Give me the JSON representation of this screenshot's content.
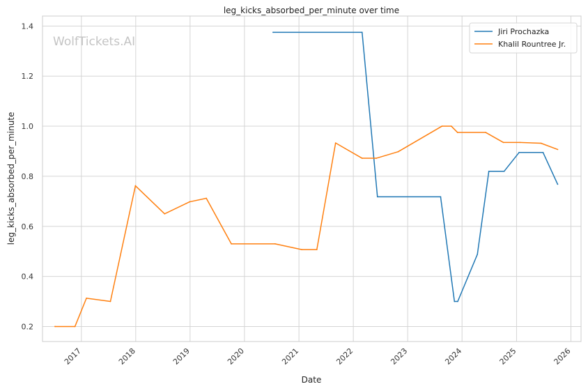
{
  "chart_data": {
    "type": "line",
    "title": "leg_kicks_absorbed_per_minute over time",
    "xlabel": "Date",
    "ylabel": "leg_kicks_absorbed_per_minute",
    "watermark": "WolfTickets.AI",
    "xlim": [
      "2016-04-15",
      "2026-03-10"
    ],
    "ylim": [
      0.14,
      1.44
    ],
    "x_ticks": [
      "2017",
      "2018",
      "2019",
      "2020",
      "2021",
      "2022",
      "2023",
      "2024",
      "2025",
      "2026"
    ],
    "y_ticks": [
      0.2,
      0.4,
      0.6,
      0.8,
      1.0,
      1.2,
      1.4
    ],
    "y_tick_labels": [
      "0.2",
      "0.4",
      "0.6",
      "0.8",
      "1.0",
      "1.2",
      "1.4"
    ],
    "grid": true,
    "legend_position": "top-right",
    "series": [
      {
        "name": "Jiri Prochazka",
        "color": "#1f77b4",
        "points": [
          [
            "2020-07-11",
            1.375
          ],
          [
            "2022-03-01",
            1.375
          ],
          [
            "2022-06-12",
            0.718
          ],
          [
            "2023-08-10",
            0.718
          ],
          [
            "2023-11-11",
            0.3
          ],
          [
            "2023-12-03",
            0.3
          ],
          [
            "2024-04-13",
            0.488
          ],
          [
            "2024-06-29",
            0.82
          ],
          [
            "2024-10-10",
            0.82
          ],
          [
            "2025-01-18",
            0.895
          ],
          [
            "2025-06-28",
            0.895
          ],
          [
            "2025-10-04",
            0.768
          ]
        ]
      },
      {
        "name": "Khalil Rountree Jr.",
        "color": "#ff7f0e",
        "points": [
          [
            "2016-07-08",
            0.2
          ],
          [
            "2016-11-19",
            0.2
          ],
          [
            "2017-02-04",
            0.313
          ],
          [
            "2017-07-15",
            0.3
          ],
          [
            "2017-12-30",
            0.762
          ],
          [
            "2018-07-14",
            0.65
          ],
          [
            "2018-12-29",
            0.698
          ],
          [
            "2019-04-20",
            0.712
          ],
          [
            "2019-10-05",
            0.53
          ],
          [
            "2020-07-25",
            0.53
          ],
          [
            "2021-01-20",
            0.507
          ],
          [
            "2021-05-01",
            0.507
          ],
          [
            "2021-09-04",
            0.933
          ],
          [
            "2022-03-01",
            0.872
          ],
          [
            "2022-06-04",
            0.872
          ],
          [
            "2022-10-29",
            0.898
          ],
          [
            "2023-08-19",
            1.0
          ],
          [
            "2023-10-21",
            1.0
          ],
          [
            "2023-12-02",
            0.975
          ],
          [
            "2024-06-08",
            0.975
          ],
          [
            "2024-10-05",
            0.935
          ],
          [
            "2025-01-25",
            0.935
          ],
          [
            "2025-06-14",
            0.932
          ],
          [
            "2025-10-04",
            0.907
          ]
        ]
      }
    ]
  }
}
